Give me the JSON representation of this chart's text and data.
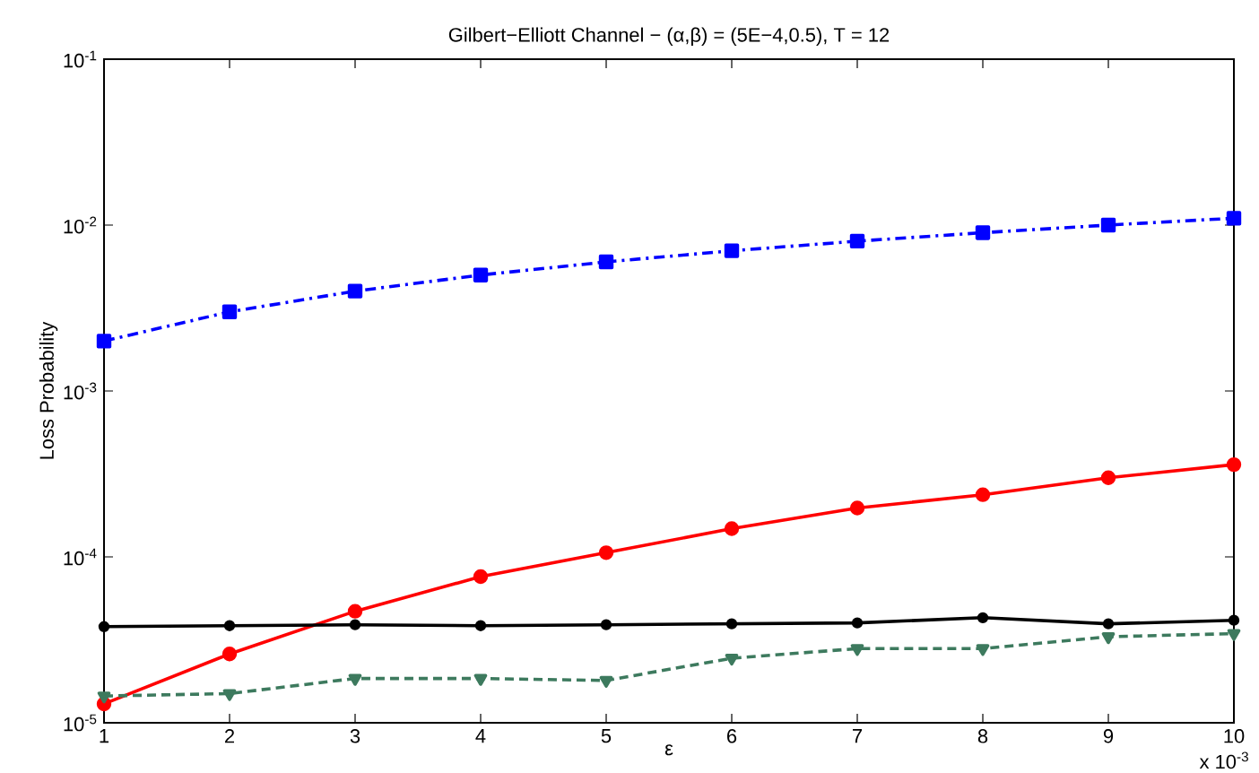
{
  "chart_data": {
    "type": "line",
    "title": "Gilbert−Elliott Channel − (α,β) = (5E−4,0.5), T = 12",
    "xlabel": "ε",
    "ylabel": "Loss Probability",
    "annotations": [
      "x 10$^{-3}$"
    ],
    "x": [
      1,
      2,
      3,
      4,
      5,
      6,
      7,
      8,
      9,
      10
    ],
    "series": [
      {
        "color": "#0000ff",
        "marker": "square",
        "line_style": "dashdot",
        "values": [
          0.002,
          0.003,
          0.004,
          0.005,
          0.006,
          0.007,
          0.008,
          0.009,
          0.01,
          0.011
        ]
      },
      {
        "color": "#ff0000",
        "marker": "circle",
        "line_style": "solid",
        "values": [
          1.3e-05,
          2.6e-05,
          4.7e-05,
          7.6e-05,
          0.000106,
          0.000148,
          0.000197,
          0.000237,
          0.0003,
          0.00036
        ]
      },
      {
        "color": "#000000",
        "marker": "circle",
        "line_style": "solid",
        "values": [
          3.8e-05,
          3.85e-05,
          3.9e-05,
          3.85e-05,
          3.9e-05,
          3.95e-05,
          4e-05,
          4.3e-05,
          3.95e-05,
          4.15e-05
        ]
      },
      {
        "color": "#3d7a5e",
        "marker": "triangle",
        "line_style": "dashed",
        "values": [
          1.45e-05,
          1.5e-05,
          1.85e-05,
          1.85e-05,
          1.8e-05,
          2.45e-05,
          2.8e-05,
          2.8e-05,
          3.3e-05,
          3.45e-05
        ]
      }
    ],
    "xlim": [
      1,
      10
    ],
    "xticks": [
      1,
      2,
      3,
      4,
      5,
      6,
      7,
      8,
      9,
      10
    ],
    "ylim": [
      1e-05,
      0.1
    ],
    "yticks": [
      {
        "value": 1e-05,
        "label": "10$^{-5}$"
      },
      {
        "value": 0.0001,
        "label": "10$^{-4}$"
      },
      {
        "value": 0.001,
        "label": "10$^{-3}$"
      },
      {
        "value": 0.01,
        "label": "10$^{-2}$"
      },
      {
        "value": 0.1,
        "label": "10$^{-1}$"
      }
    ],
    "log": "y",
    "grid": false
  }
}
